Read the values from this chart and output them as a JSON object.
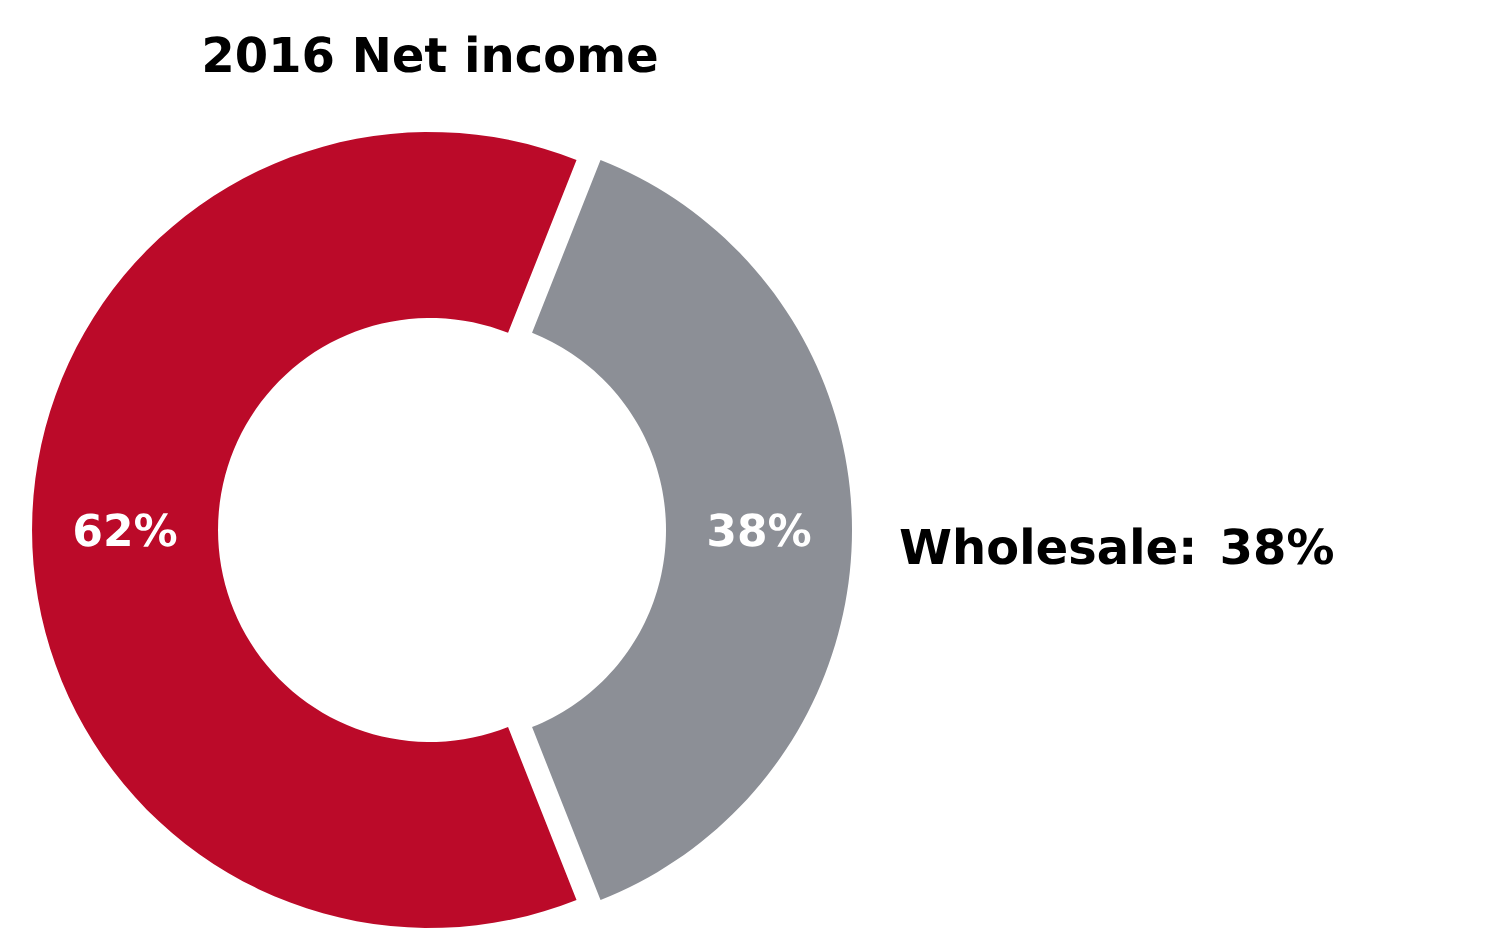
{
  "chart_data": {
    "type": "donut",
    "title": "2016 Net income",
    "categories": [
      null,
      "Wholesale: 38%"
    ],
    "values": [
      62,
      38
    ],
    "colors": [
      "#bb0a29",
      "#8c8f96"
    ],
    "value_labels": [
      "62%",
      "38%"
    ]
  }
}
